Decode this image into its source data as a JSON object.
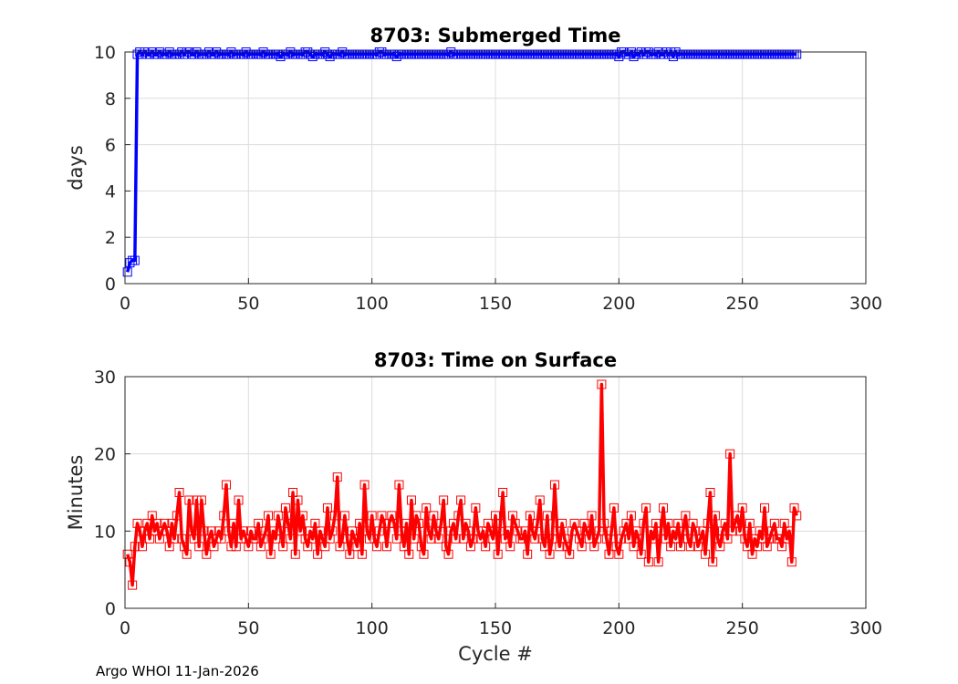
{
  "footer": "Argo WHOI 11-Jan-2026",
  "colors": {
    "submerged": "#0000ff",
    "surface": "#ff0000",
    "grid": "#dcdcdc",
    "axis": "#262626"
  },
  "chart_data": [
    {
      "type": "line",
      "title": "8703: Submerged Time",
      "xlabel": "",
      "ylabel": "days",
      "xlim": [
        0,
        300
      ],
      "ylim": [
        0,
        10
      ],
      "xticks": [
        "0",
        "50",
        "100",
        "150",
        "200",
        "250",
        "300"
      ],
      "yticks": [
        "0",
        "2",
        "4",
        "6",
        "8",
        "10"
      ],
      "grid": true,
      "marker": "square",
      "series_color": "#0000ff",
      "x_start": 1,
      "x_end": 272,
      "values": [
        0.5,
        0.9,
        1.0,
        1.0,
        9.9,
        10.0,
        9.9,
        10.0,
        9.9,
        9.9,
        10.0,
        9.9,
        9.9,
        10.0,
        9.9,
        9.9,
        9.9,
        10.0,
        9.9,
        9.9,
        9.9,
        9.9,
        10.0,
        9.9,
        10.0,
        10.0,
        9.9,
        9.9,
        10.0,
        9.9,
        9.9,
        9.9,
        9.9,
        10.0,
        9.9,
        9.9,
        10.0,
        9.9,
        9.9,
        9.9,
        9.9,
        9.9,
        10.0,
        9.9,
        9.9,
        9.9,
        9.9,
        9.9,
        10.0,
        9.9,
        9.9,
        9.9,
        9.9,
        9.9,
        9.9,
        10.0,
        9.9,
        9.9,
        9.9,
        9.9,
        9.9,
        9.9,
        9.8,
        9.9,
        9.9,
        9.9,
        10.0,
        9.9,
        9.9,
        9.9,
        9.9,
        9.9,
        10.0,
        10.0,
        9.9,
        9.8,
        9.9,
        9.9,
        9.9,
        9.9,
        10.0,
        9.9,
        9.8,
        9.9,
        9.9,
        9.9,
        9.9,
        10.0,
        9.9,
        9.9,
        9.9,
        9.9,
        9.9,
        9.9,
        9.9,
        9.9,
        9.9,
        9.9,
        9.9,
        9.9,
        9.9,
        9.9,
        10.0,
        10.0,
        9.9,
        9.9,
        9.9,
        9.9,
        9.9,
        9.8,
        9.9,
        9.9,
        9.9,
        9.9,
        9.9,
        9.9,
        9.9,
        9.9,
        9.9,
        9.9,
        9.9,
        9.9,
        9.9,
        9.9,
        9.9,
        9.9,
        9.9,
        9.9,
        9.9,
        9.9,
        9.9,
        10.0,
        9.9,
        9.9,
        9.9,
        9.9,
        9.9,
        9.9,
        9.9,
        9.9,
        9.9,
        9.9,
        9.9,
        9.9,
        9.9,
        9.9,
        9.9,
        9.9,
        9.9,
        9.9,
        9.9,
        9.9,
        9.9,
        9.9,
        9.9,
        9.9,
        9.9,
        9.9,
        9.9,
        9.9,
        9.9,
        9.9,
        9.9,
        9.9,
        9.9,
        9.9,
        9.9,
        9.9,
        9.9,
        9.9,
        9.9,
        9.9,
        9.9,
        9.9,
        9.9,
        9.9,
        9.9,
        9.9,
        9.9,
        9.9,
        9.9,
        9.9,
        9.9,
        9.9,
        9.9,
        9.9,
        9.9,
        9.9,
        9.9,
        9.9,
        9.9,
        9.9,
        9.9,
        9.9,
        9.9,
        9.9,
        9.9,
        9.9,
        9.9,
        9.8,
        10.0,
        10.0,
        9.9,
        9.9,
        10.0,
        9.8,
        9.9,
        9.9,
        10.0,
        9.9,
        10.0,
        10.0,
        9.9,
        9.9,
        9.9,
        10.0,
        9.9,
        9.9,
        10.0,
        9.9,
        10.0,
        9.8,
        10.0,
        9.9,
        9.9,
        9.9,
        9.9,
        9.9,
        9.9,
        9.9,
        9.9,
        9.9,
        9.9,
        9.9,
        9.9,
        9.9,
        9.9,
        9.9,
        9.9,
        9.9,
        9.9,
        9.9,
        9.9,
        9.9,
        9.9,
        9.9,
        9.9,
        9.9,
        9.9,
        9.9,
        9.9,
        9.9,
        9.9,
        9.9,
        9.9,
        9.9,
        9.9,
        9.9,
        9.9,
        9.9,
        9.9,
        9.9,
        9.9,
        9.9,
        9.9,
        9.9,
        9.9,
        9.9,
        9.9,
        9.9,
        9.9,
        9.9
      ]
    },
    {
      "type": "line",
      "title": "8703: Time on Surface",
      "xlabel": "Cycle #",
      "ylabel": "Minutes",
      "xlim": [
        0,
        300
      ],
      "ylim": [
        0,
        30
      ],
      "xticks": [
        "0",
        "50",
        "100",
        "150",
        "200",
        "250",
        "300"
      ],
      "yticks": [
        "0",
        "10",
        "20",
        "30"
      ],
      "grid": true,
      "marker": "square",
      "series_color": "#ff0000",
      "x_start": 1,
      "x_end": 272,
      "values": [
        7,
        6,
        3,
        8,
        11,
        10,
        8,
        10,
        11,
        9,
        12,
        10,
        11,
        9,
        10,
        11,
        10,
        8,
        11,
        9,
        12,
        15,
        9,
        8,
        7,
        14,
        10,
        9,
        14,
        8,
        14,
        10,
        7,
        9,
        10,
        8,
        9,
        10,
        9,
        12,
        16,
        10,
        8,
        11,
        8,
        14,
        9,
        10,
        9,
        8,
        10,
        9,
        9,
        11,
        8,
        9,
        10,
        12,
        7,
        10,
        9,
        12,
        10,
        8,
        13,
        11,
        9,
        15,
        7,
        14,
        10,
        12,
        9,
        8,
        10,
        9,
        11,
        7,
        10,
        9,
        8,
        13,
        9,
        10,
        12,
        17,
        8,
        9,
        12,
        9,
        7,
        10,
        9,
        8,
        11,
        7,
        16,
        10,
        9,
        12,
        9,
        8,
        10,
        12,
        11,
        8,
        11,
        12,
        11,
        9,
        16,
        10,
        8,
        11,
        7,
        14,
        9,
        12,
        11,
        8,
        7,
        13,
        10,
        9,
        12,
        10,
        9,
        11,
        14,
        8,
        7,
        10,
        11,
        9,
        12,
        14,
        9,
        11,
        10,
        8,
        9,
        13,
        10,
        9,
        10,
        8,
        11,
        10,
        9,
        12,
        7,
        11,
        15,
        9,
        10,
        8,
        12,
        11,
        10,
        9,
        9,
        10,
        7,
        12,
        10,
        9,
        11,
        14,
        9,
        8,
        12,
        7,
        9,
        16,
        10,
        8,
        11,
        9,
        8,
        7,
        10,
        11,
        10,
        9,
        8,
        11,
        10,
        9,
        12,
        8,
        9,
        10,
        29,
        11,
        9,
        7,
        10,
        13,
        8,
        7,
        9,
        10,
        11,
        9,
        12,
        8,
        10,
        9,
        7,
        11,
        13,
        6,
        10,
        9,
        11,
        6,
        10,
        13,
        9,
        11,
        8,
        10,
        9,
        11,
        8,
        10,
        12,
        9,
        8,
        11,
        10,
        8,
        9,
        10,
        7,
        11,
        15,
        6,
        12,
        9,
        8,
        10,
        11,
        9,
        20,
        10,
        11,
        12,
        10,
        13,
        9,
        8,
        11,
        7,
        9,
        8,
        10,
        9,
        13,
        8,
        9,
        10,
        11,
        9,
        9,
        8,
        11,
        9,
        10,
        6,
        13,
        12
      ]
    }
  ]
}
